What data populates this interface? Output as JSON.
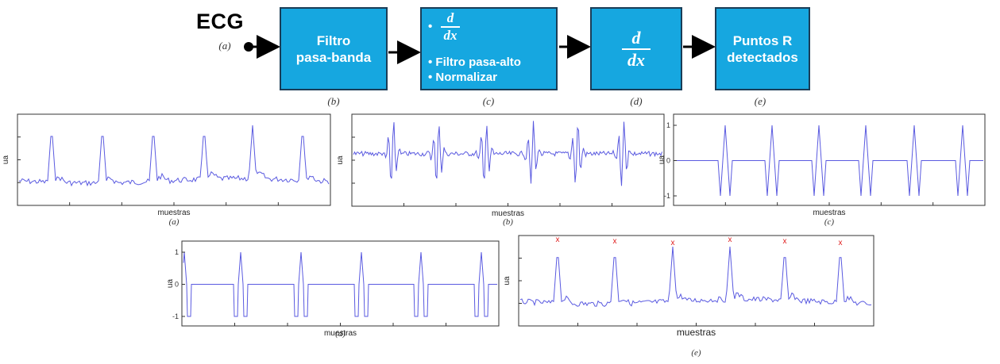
{
  "input": {
    "label": "ECG",
    "caption": "(a)"
  },
  "blocks": [
    {
      "id": "b",
      "lines": [
        "Filtro",
        "pasa-banda"
      ],
      "caption": "(b)"
    },
    {
      "id": "c",
      "deriv": {
        "num": "d",
        "den": "dx"
      },
      "bullets": [
        "Filtro pasa-alto",
        "Normalizar"
      ],
      "caption": "(c)"
    },
    {
      "id": "d",
      "deriv": {
        "num": "d",
        "den": "dx"
      },
      "caption": "(d)"
    },
    {
      "id": "e",
      "lines": [
        "Puntos R",
        "detectados"
      ],
      "caption": "(e)"
    }
  ],
  "colors": {
    "block_fill": "#16a7e0",
    "block_border": "#1a3d57",
    "signal": "#5a5ae0",
    "peak_marker": "#e02020"
  },
  "chart_data": [
    {
      "type": "line",
      "panel": "a",
      "xlabel": "muestras",
      "ylabel": "ua",
      "caption": "(a)",
      "peaks": 6,
      "yticks": []
    },
    {
      "type": "line",
      "panel": "b",
      "xlabel": "muestras",
      "ylabel": "ua",
      "caption": "(b)",
      "peaks": 6,
      "yticks": []
    },
    {
      "type": "line",
      "panel": "c",
      "xlabel": "muestras",
      "ylabel": "ua",
      "caption": "(c)",
      "peaks": 6,
      "yticks": [
        "1",
        "0",
        "-1"
      ],
      "ylim": [
        -1,
        1
      ]
    },
    {
      "type": "line",
      "panel": "d",
      "xlabel": "muestras",
      "ylabel": "ua",
      "caption": "(d)",
      "peaks": 6,
      "yticks": [
        "1",
        "0",
        "-1"
      ],
      "ylim": [
        -1,
        1
      ]
    },
    {
      "type": "line",
      "panel": "e",
      "xlabel": "muestras",
      "ylabel": "ua",
      "caption": "(e)",
      "peaks": 6,
      "yticks": [],
      "markers": "x"
    }
  ]
}
